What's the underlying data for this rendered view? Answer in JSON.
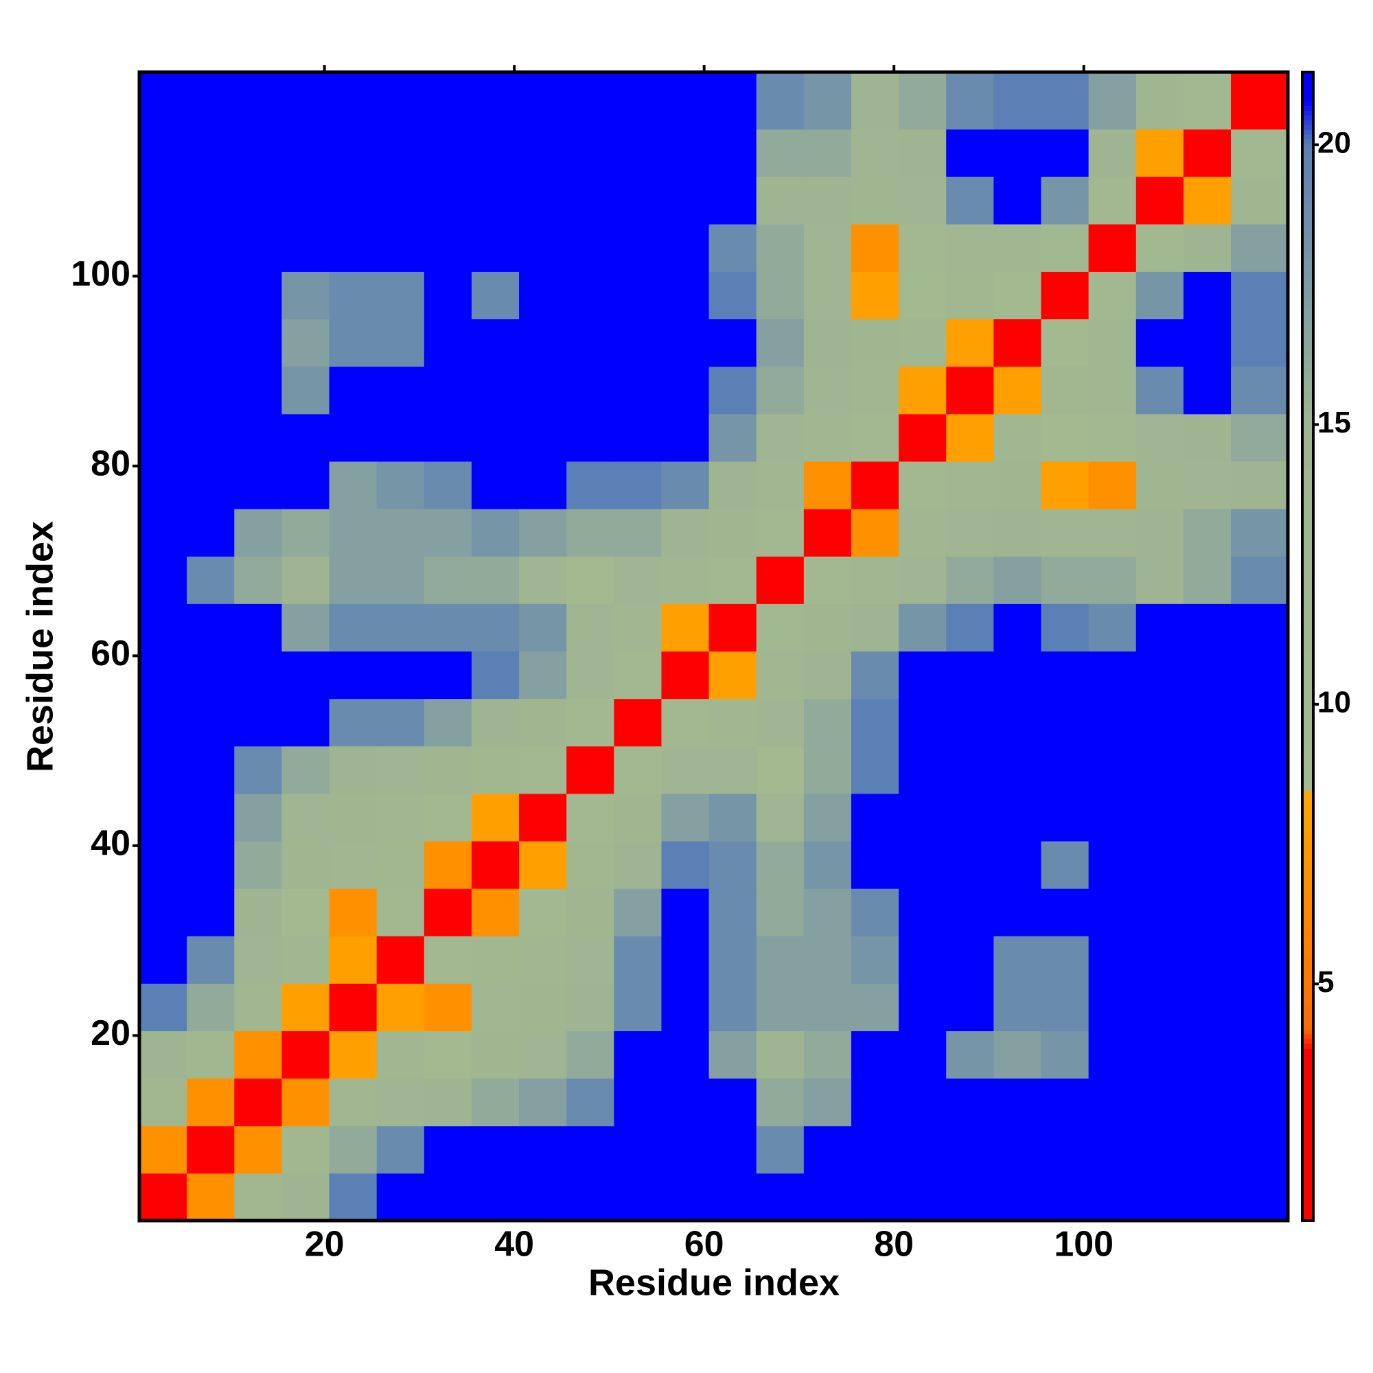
{
  "chart_data": {
    "type": "heatmap",
    "xlabel": "Residue index",
    "ylabel": "Residue index",
    "x_bins": [
      0.5,
      5.5,
      10.5,
      15.5,
      20.5,
      25.5,
      30.5,
      35.5,
      40.5,
      45.5,
      50.5,
      55.5,
      60.5,
      65.5,
      70.5,
      75.5,
      80.5,
      85.5,
      90.5,
      95.5,
      100.5,
      105.5,
      110.5,
      115.5,
      121.5
    ],
    "y_bins": [
      0.5,
      5.5,
      10.5,
      15.5,
      20.5,
      25.5,
      30.5,
      35.5,
      40.5,
      45.5,
      50.5,
      55.5,
      60.5,
      65.5,
      70.5,
      75.5,
      80.5,
      85.5,
      90.5,
      95.5,
      100.5,
      105.5,
      110.5,
      115.5,
      121.5
    ],
    "xlim": [
      0.5,
      121.5
    ],
    "ylim": [
      0.5,
      121.5
    ],
    "xticks": [
      20,
      40,
      60,
      80,
      100
    ],
    "yticks": [
      20,
      40,
      60,
      80,
      100
    ],
    "clim": [
      0.77,
      21.3
    ],
    "cticks": [
      5,
      10,
      15,
      20
    ],
    "colorscale": [
      [
        0.77,
        "#ff0000"
      ],
      [
        3.8,
        "#ff0000"
      ],
      [
        4.2,
        "#ff6a00"
      ],
      [
        8.4,
        "#ffa500"
      ],
      [
        8.5,
        "#a3b98f"
      ],
      [
        15,
        "#9fb592"
      ],
      [
        20,
        "#5b80b5"
      ],
      [
        20.8,
        "#0000ff"
      ],
      [
        21.3,
        "#0000ff"
      ]
    ],
    "z": [
      [
        3,
        7,
        11,
        15,
        20,
        21,
        21,
        21,
        21,
        21,
        21,
        21,
        21,
        21,
        21,
        21,
        21,
        21,
        21,
        21,
        21,
        21,
        21,
        21
      ],
      [
        7,
        3,
        7,
        11,
        16,
        19,
        21,
        21,
        21,
        21,
        21,
        21,
        21,
        19,
        21,
        21,
        21,
        21,
        21,
        21,
        21,
        21,
        21,
        21
      ],
      [
        11,
        7,
        3,
        7,
        12,
        14,
        15,
        16,
        17,
        19,
        21,
        21,
        21,
        16,
        17,
        21,
        21,
        21,
        21,
        21,
        21,
        21,
        21,
        21
      ],
      [
        15,
        11,
        7,
        3,
        8,
        12,
        9,
        13,
        14,
        16,
        21,
        21,
        17,
        15,
        16,
        21,
        21,
        18,
        17,
        18,
        21,
        21,
        21,
        21
      ],
      [
        20,
        16,
        12,
        8,
        3,
        8,
        7,
        12,
        13,
        15,
        19,
        21,
        19,
        17,
        17,
        17,
        21,
        21,
        19,
        19,
        21,
        21,
        21,
        21
      ],
      [
        21,
        19,
        14,
        12,
        8,
        3,
        10,
        11,
        12,
        14,
        19,
        21,
        19,
        17,
        17,
        18,
        21,
        21,
        19,
        19,
        21,
        21,
        21,
        21
      ],
      [
        21,
        21,
        15,
        9,
        7,
        10,
        3,
        7,
        10,
        13,
        17,
        21,
        19,
        16,
        17,
        19,
        21,
        21,
        21,
        21,
        21,
        21,
        21,
        21
      ],
      [
        21,
        21,
        16,
        13,
        12,
        11,
        7,
        3,
        8,
        11,
        15,
        20,
        19,
        16,
        18,
        21,
        21,
        21,
        21,
        19,
        21,
        21,
        21,
        21
      ],
      [
        21,
        21,
        17,
        14,
        13,
        12,
        10,
        8,
        3,
        10,
        13,
        17,
        18,
        14,
        17,
        21,
        21,
        21,
        21,
        21,
        21,
        21,
        21,
        21
      ],
      [
        21,
        21,
        19,
        16,
        15,
        14,
        13,
        11,
        10,
        3,
        10,
        14,
        14,
        9,
        16,
        20,
        21,
        21,
        21,
        21,
        21,
        21,
        21,
        21
      ],
      [
        21,
        21,
        21,
        21,
        19,
        19,
        17,
        15,
        13,
        10,
        3,
        10,
        12,
        14,
        16,
        20,
        21,
        21,
        21,
        21,
        21,
        21,
        21,
        21
      ],
      [
        21,
        21,
        21,
        21,
        21,
        21,
        21,
        20,
        17,
        14,
        10,
        3,
        8,
        12,
        15,
        19,
        21,
        21,
        21,
        21,
        21,
        21,
        21,
        21
      ],
      [
        21,
        21,
        21,
        17,
        19,
        19,
        19,
        19,
        18,
        14,
        12,
        8,
        3,
        10,
        13,
        15,
        18,
        20,
        21,
        20,
        19,
        21,
        21,
        21
      ],
      [
        21,
        19,
        16,
        15,
        17,
        17,
        16,
        16,
        14,
        9,
        14,
        12,
        10,
        3,
        10,
        12,
        14,
        16,
        17,
        16,
        16,
        15,
        16,
        19
      ],
      [
        21,
        21,
        17,
        16,
        17,
        17,
        17,
        18,
        17,
        16,
        16,
        15,
        13,
        10,
        3,
        7,
        12,
        14,
        15,
        14,
        14,
        15,
        16,
        18
      ],
      [
        21,
        21,
        21,
        21,
        17,
        18,
        19,
        21,
        21,
        20,
        20,
        19,
        15,
        12,
        7,
        3,
        10,
        12,
        13,
        8,
        7,
        13,
        14,
        15
      ],
      [
        21,
        21,
        21,
        21,
        21,
        21,
        21,
        21,
        21,
        21,
        21,
        21,
        18,
        14,
        12,
        10,
        3,
        8,
        12,
        9,
        10,
        14,
        15,
        16
      ],
      [
        21,
        21,
        21,
        18,
        21,
        21,
        21,
        21,
        21,
        21,
        21,
        21,
        20,
        16,
        14,
        12,
        8,
        3,
        8,
        11,
        12,
        19,
        21,
        19
      ],
      [
        21,
        21,
        21,
        17,
        19,
        19,
        21,
        21,
        21,
        21,
        21,
        21,
        21,
        17,
        15,
        13,
        12,
        8,
        3,
        9,
        12,
        21,
        21,
        20
      ],
      [
        21,
        21,
        21,
        18,
        19,
        19,
        21,
        19,
        21,
        21,
        21,
        21,
        20,
        16,
        14,
        8,
        9,
        11,
        9,
        3,
        10,
        18,
        21,
        20
      ],
      [
        21,
        21,
        21,
        21,
        21,
        21,
        21,
        21,
        21,
        21,
        21,
        21,
        19,
        16,
        14,
        7,
        10,
        12,
        12,
        10,
        3,
        10,
        15,
        17
      ],
      [
        21,
        21,
        21,
        21,
        21,
        21,
        21,
        21,
        21,
        21,
        21,
        21,
        21,
        15,
        15,
        13,
        14,
        19,
        21,
        18,
        10,
        3,
        8,
        13
      ],
      [
        21,
        21,
        21,
        21,
        21,
        21,
        21,
        21,
        21,
        21,
        21,
        21,
        21,
        16,
        16,
        14,
        15,
        21,
        21,
        21,
        15,
        8,
        3,
        10
      ],
      [
        21,
        21,
        21,
        21,
        21,
        21,
        21,
        21,
        21,
        21,
        21,
        21,
        21,
        19,
        18,
        15,
        16,
        19,
        20,
        20,
        17,
        13,
        10,
        3
      ]
    ]
  }
}
